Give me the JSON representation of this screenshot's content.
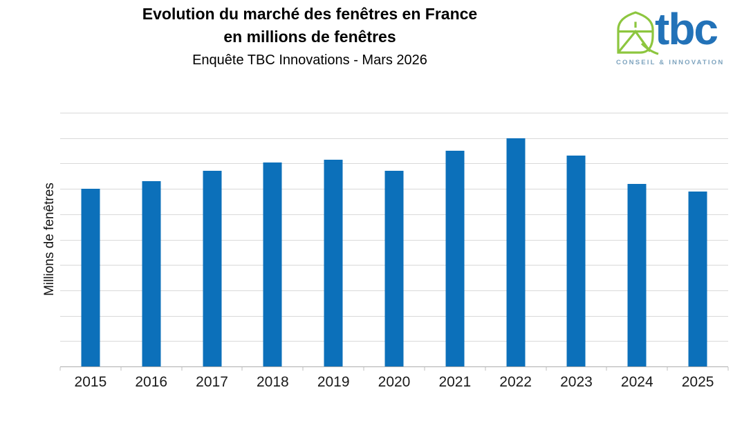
{
  "header": {
    "title_line1": "Evolution du marché des fenêtres en France",
    "title_line2": "en millions de fenêtres",
    "subtitle": "Enquête TBC Innovations - Mars 2026"
  },
  "logo": {
    "wordmark": "tbc",
    "tagline": "CONSEIL & INNOVATION",
    "glyph": "tbc-house-leaf-icon",
    "colors": {
      "green": "#8DC63F",
      "blue": "#2272B8",
      "tagline": "#7DA3BE"
    }
  },
  "chart_data": {
    "type": "bar",
    "title": "Evolution du marché des fenêtres en France en millions de fenêtres",
    "subtitle": "Enquête TBC Innovations - Mars 2026",
    "categories": [
      "2015",
      "2016",
      "2017",
      "2018",
      "2019",
      "2020",
      "2021",
      "2022",
      "2023",
      "2024",
      "2025"
    ],
    "values": [
      7.0,
      7.3,
      7.7,
      8.05,
      8.15,
      7.7,
      8.5,
      9.0,
      8.3,
      7.2,
      6.9
    ],
    "xlabel": "",
    "ylabel": "Millions de fenêtres",
    "ylim": [
      0,
      10
    ],
    "gridline_step": 1,
    "y_tick_labels_visible": false,
    "grid": true,
    "legend": false,
    "bar_color": "#0C70BA",
    "gridline_color": "#D9D9D9",
    "axis_line_color": "#ADADAD"
  }
}
